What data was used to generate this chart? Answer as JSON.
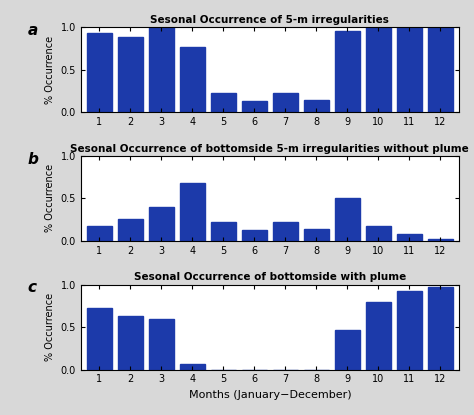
{
  "panel_a": {
    "title": "Sesonal Occurrence of 5-m irregularities",
    "values": [
      0.93,
      0.89,
      1.0,
      0.77,
      0.23,
      0.13,
      0.22,
      0.14,
      0.95,
      1.0,
      1.0,
      1.0
    ],
    "label": "a"
  },
  "panel_b": {
    "title": "Sesonal Occurrence of bottomside 5-m irregularities without plume",
    "values": [
      0.18,
      0.26,
      0.4,
      0.68,
      0.22,
      0.13,
      0.22,
      0.14,
      0.5,
      0.18,
      0.08,
      0.02
    ],
    "label": "b"
  },
  "panel_c": {
    "title": "Sesonal Occurrence of bottomside with plume",
    "values": [
      0.73,
      0.63,
      0.59,
      0.07,
      0.0,
      0.0,
      0.0,
      0.0,
      0.46,
      0.8,
      0.92,
      0.97
    ],
    "label": "c"
  },
  "months": [
    1,
    2,
    3,
    4,
    5,
    6,
    7,
    8,
    9,
    10,
    11,
    12
  ],
  "bar_color": "#1c3aaa",
  "ylabel": "% Occurrence",
  "xlabel": "Months (January−December)",
  "ylim": [
    0,
    1
  ],
  "yticks": [
    0,
    0.5,
    1
  ],
  "xticks": [
    1,
    2,
    3,
    4,
    5,
    6,
    7,
    8,
    9,
    10,
    11,
    12
  ],
  "bar_width": 0.8,
  "bg_color": "#d8d8d8"
}
